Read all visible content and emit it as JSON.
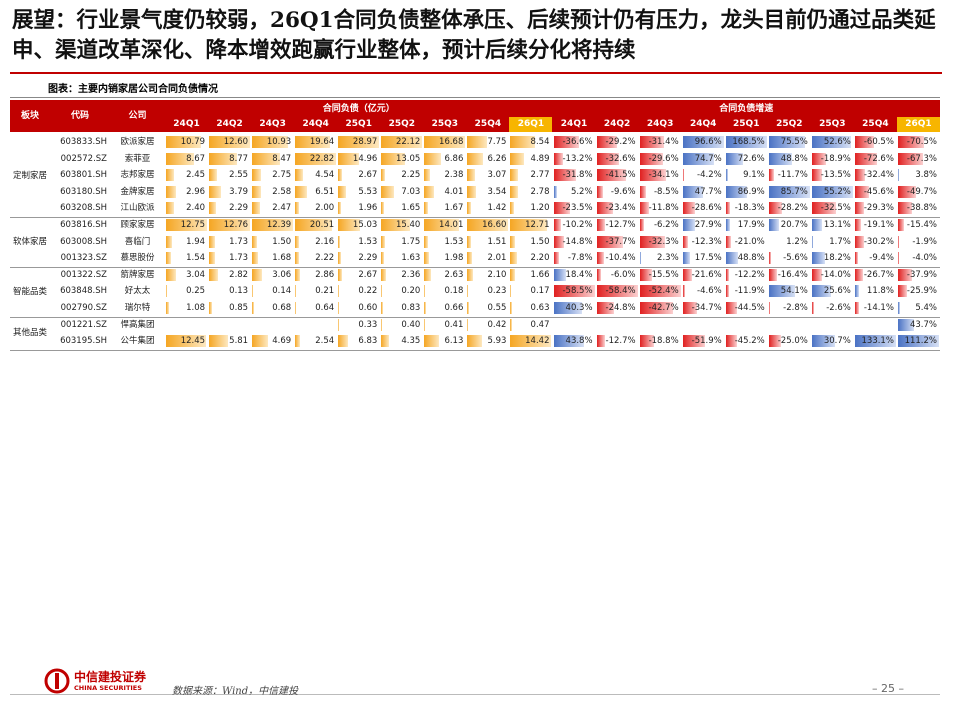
{
  "header": {
    "title": "展望：行业景气度仍较弱，26Q1合同负债整体承压、后续预计仍有压力，龙头目前仍通过品类延申、渠道改革深化、降本增效跑赢行业整体，预计后续分化将持续",
    "subtitle": "图表：主要内销家居公司合同负债情况"
  },
  "table": {
    "columns": [
      "板块",
      "代码",
      "公司"
    ],
    "group_headers": [
      "合同负债（亿元）",
      "合同负债增速"
    ],
    "quarters": [
      "24Q1",
      "24Q2",
      "24Q3",
      "24Q4",
      "25Q1",
      "25Q2",
      "25Q3",
      "25Q4",
      "26Q1"
    ],
    "segments": [
      {
        "name": "定制家居",
        "rows": [
          {
            "code": "603833.SH",
            "company": "欧派家居",
            "liability": [
              "10.79",
              "12.60",
              "10.93",
              "19.64",
              "28.97",
              "22.12",
              "16.68",
              "7.75",
              "8.54"
            ],
            "growth": [
              "-36.6%",
              "-29.2%",
              "-31.4%",
              "96.6%",
              "168.5%",
              "75.5%",
              "52.6%",
              "-60.5%",
              "-70.5%"
            ]
          },
          {
            "code": "002572.SZ",
            "company": "索菲亚",
            "liability": [
              "8.67",
              "8.77",
              "8.47",
              "22.82",
              "14.96",
              "13.05",
              "6.86",
              "6.26",
              "4.89"
            ],
            "growth": [
              "-13.2%",
              "-32.6%",
              "-29.6%",
              "74.7%",
              "72.6%",
              "48.8%",
              "-18.9%",
              "-72.6%",
              "-67.3%"
            ]
          },
          {
            "code": "603801.SH",
            "company": "志邦家居",
            "liability": [
              "2.45",
              "2.55",
              "2.75",
              "4.54",
              "2.67",
              "2.25",
              "2.38",
              "3.07",
              "2.77"
            ],
            "growth": [
              "-31.8%",
              "-41.5%",
              "-34.1%",
              "-4.2%",
              "9.1%",
              "-11.7%",
              "-13.5%",
              "-32.4%",
              "3.8%"
            ]
          },
          {
            "code": "603180.SH",
            "company": "金牌家居",
            "liability": [
              "2.96",
              "3.79",
              "2.58",
              "6.51",
              "5.53",
              "7.03",
              "4.01",
              "3.54",
              "2.78"
            ],
            "growth": [
              "5.2%",
              "-9.6%",
              "-8.5%",
              "47.7%",
              "86.9%",
              "85.7%",
              "55.2%",
              "-45.6%",
              "-49.7%"
            ]
          },
          {
            "code": "603208.SH",
            "company": "江山欧派",
            "liability": [
              "2.40",
              "2.29",
              "2.47",
              "2.00",
              "1.96",
              "1.65",
              "1.67",
              "1.42",
              "1.20"
            ],
            "growth": [
              "-23.5%",
              "-23.4%",
              "-11.8%",
              "-28.6%",
              "-18.3%",
              "-28.2%",
              "-32.5%",
              "-29.3%",
              "-38.8%"
            ]
          }
        ]
      },
      {
        "name": "软体家居",
        "rows": [
          {
            "code": "603816.SH",
            "company": "顾家家居",
            "liability": [
              "12.75",
              "12.76",
              "12.39",
              "20.51",
              "15.03",
              "15.40",
              "14.01",
              "16.60",
              "12.71"
            ],
            "growth": [
              "-10.2%",
              "-12.7%",
              "-6.2%",
              "27.9%",
              "17.9%",
              "20.7%",
              "13.1%",
              "-19.1%",
              "-15.4%"
            ]
          },
          {
            "code": "603008.SH",
            "company": "喜临门",
            "liability": [
              "1.94",
              "1.73",
              "1.50",
              "2.16",
              "1.53",
              "1.75",
              "1.53",
              "1.51",
              "1.50"
            ],
            "growth": [
              "-14.8%",
              "-37.7%",
              "-32.3%",
              "-12.3%",
              "-21.0%",
              "1.2%",
              "1.7%",
              "-30.2%",
              "-1.9%"
            ]
          },
          {
            "code": "001323.SZ",
            "company": "慕思股份",
            "liability": [
              "1.54",
              "1.73",
              "1.68",
              "2.22",
              "2.29",
              "1.63",
              "1.98",
              "2.01",
              "2.20"
            ],
            "growth": [
              "-7.8%",
              "-10.4%",
              "2.3%",
              "17.5%",
              "48.8%",
              "-5.6%",
              "18.2%",
              "-9.4%",
              "-4.0%"
            ]
          }
        ]
      },
      {
        "name": "智能品类",
        "rows": [
          {
            "code": "001322.SZ",
            "company": "箭牌家居",
            "liability": [
              "3.04",
              "2.82",
              "3.06",
              "2.86",
              "2.67",
              "2.36",
              "2.63",
              "2.10",
              "1.66"
            ],
            "growth": [
              "18.4%",
              "-6.0%",
              "-15.5%",
              "-21.6%",
              "-12.2%",
              "-16.4%",
              "-14.0%",
              "-26.7%",
              "-37.9%"
            ]
          },
          {
            "code": "603848.SH",
            "company": "好太太",
            "liability": [
              "0.25",
              "0.13",
              "0.14",
              "0.21",
              "0.22",
              "0.20",
              "0.18",
              "0.23",
              "0.17"
            ],
            "growth": [
              "-58.5%",
              "-58.4%",
              "-52.4%",
              "-4.6%",
              "-11.9%",
              "54.1%",
              "25.6%",
              "11.8%",
              "-25.9%"
            ]
          },
          {
            "code": "002790.SZ",
            "company": "瑞尔特",
            "liability": [
              "1.08",
              "0.85",
              "0.68",
              "0.64",
              "0.60",
              "0.83",
              "0.66",
              "0.55",
              "0.63"
            ],
            "growth": [
              "40.3%",
              "-24.8%",
              "-42.7%",
              "-34.7%",
              "-44.5%",
              "-2.8%",
              "-2.6%",
              "-14.1%",
              "5.4%"
            ]
          }
        ]
      },
      {
        "name": "其他品类",
        "rows": [
          {
            "code": "001221.SZ",
            "company": "悍高集团",
            "liability": [
              null,
              null,
              null,
              null,
              "0.33",
              "0.40",
              "0.41",
              "0.42",
              "0.47"
            ],
            "growth": [
              null,
              null,
              null,
              null,
              null,
              null,
              null,
              null,
              "43.7%"
            ]
          },
          {
            "code": "603195.SH",
            "company": "公牛集团",
            "liability": [
              "12.45",
              "5.81",
              "4.69",
              "2.54",
              "6.83",
              "4.35",
              "6.13",
              "5.93",
              "14.42"
            ],
            "growth": [
              "43.8%",
              "-12.7%",
              "-18.8%",
              "-51.9%",
              "-45.2%",
              "-25.0%",
              "30.7%",
              "133.1%",
              "111.2%"
            ]
          }
        ]
      }
    ]
  },
  "footer": {
    "logo_cn": "中信建投证券",
    "logo_en": "CHINA SECURITIES",
    "source": "数据来源：Wind，中信建投",
    "page": "– 25 –"
  }
}
